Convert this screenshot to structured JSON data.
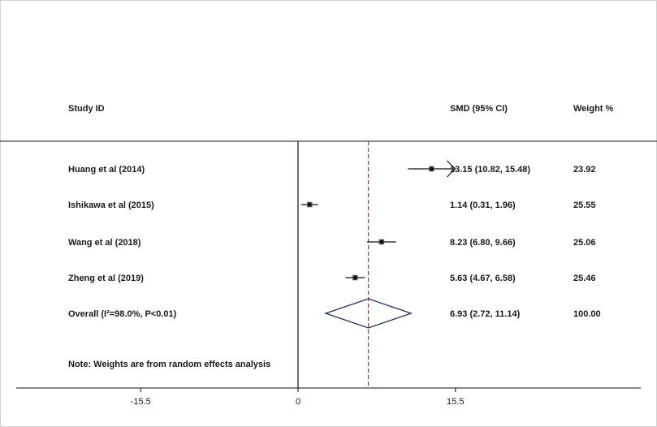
{
  "headers": {
    "study": "Study ID",
    "smd": "SMD (95% CI)",
    "weight": "Weight %"
  },
  "note": "Note: Weights are from random effects analysis",
  "overall": {
    "label": "Overall (I²=98.0%, P<0.01)",
    "estimate_text": "6.93 (2.72, 11.14)",
    "weight_text": "100.00"
  },
  "colors": {
    "point": "#111111",
    "diamond": "#1f2a66",
    "reference_line": "#c0392b",
    "axis": "#111111"
  },
  "chart_data": {
    "type": "forest",
    "title": "",
    "xlabel": "",
    "ylabel": "",
    "xlim": [
      -26,
      30
    ],
    "xticks": [
      -15.5,
      0,
      15.5
    ],
    "xtick_labels": [
      "-15.5",
      "0",
      "15.5"
    ],
    "null_line": 0,
    "studies": [
      {
        "label": "Huang et al (2014)",
        "smd": 13.15,
        "lower": 10.82,
        "upper": 15.48,
        "ci_text": "13.15 (10.82, 15.48)",
        "weight": 23.92,
        "weight_text": "23.92",
        "arrow_right": true
      },
      {
        "label": "Ishikawa et al (2015)",
        "smd": 1.14,
        "lower": 0.31,
        "upper": 1.96,
        "ci_text": "1.14 (0.31, 1.96)",
        "weight": 25.55,
        "weight_text": "25.55",
        "arrow_right": false
      },
      {
        "label": "Wang et al (2018)",
        "smd": 8.23,
        "lower": 6.8,
        "upper": 9.66,
        "ci_text": "8.23 (6.80, 9.66)",
        "weight": 25.06,
        "weight_text": "25.06",
        "arrow_right": false
      },
      {
        "label": "Zheng et al (2019)",
        "smd": 5.63,
        "lower": 4.67,
        "upper": 6.58,
        "ci_text": "5.63 (4.67, 6.58)",
        "weight": 25.46,
        "weight_text": "25.46",
        "arrow_right": false
      }
    ],
    "pooled": {
      "smd": 6.93,
      "lower": 2.72,
      "upper": 11.14
    }
  }
}
